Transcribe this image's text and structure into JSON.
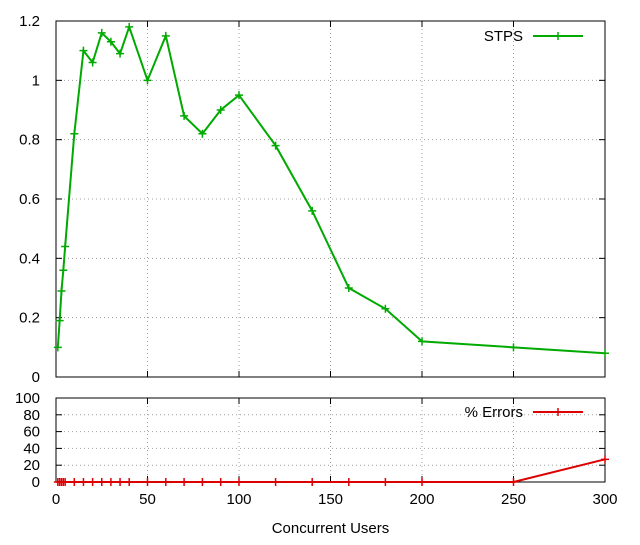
{
  "colors": {
    "stps": "#00aa00",
    "errors": "#dd0000",
    "grid": "#a0a0a0",
    "axis": "#000000"
  },
  "chart_data": [
    {
      "type": "line",
      "title": "",
      "xlabel": "",
      "ylabel": "",
      "xlim": [
        0,
        300
      ],
      "ylim": [
        0,
        1.2
      ],
      "xticks": [
        "0",
        "50",
        "100",
        "150",
        "200",
        "250",
        "300"
      ],
      "xtick_values": [
        0,
        50,
        100,
        150,
        200,
        250,
        300
      ],
      "yticks": [
        "0",
        "0.2",
        "0.4",
        "0.6",
        "0.8",
        "1",
        "1.2"
      ],
      "ytick_values": [
        0,
        0.2,
        0.4,
        0.6,
        0.8,
        1.0,
        1.2
      ],
      "grid": true,
      "legend_position": "top-right",
      "series": [
        {
          "name": "STPS",
          "color": "#00aa00",
          "x": [
            1,
            2,
            3,
            4,
            5,
            10,
            15,
            20,
            25,
            30,
            35,
            40,
            50,
            60,
            70,
            80,
            90,
            100,
            120,
            140,
            160,
            180,
            200,
            250,
            300
          ],
          "values": [
            0.1,
            0.19,
            0.29,
            0.36,
            0.44,
            0.82,
            1.1,
            1.06,
            1.16,
            1.13,
            1.09,
            1.18,
            1.0,
            1.15,
            0.88,
            0.82,
            0.9,
            0.95,
            0.78,
            0.56,
            0.3,
            0.23,
            0.12,
            0.1,
            0.08
          ]
        }
      ]
    },
    {
      "type": "line",
      "title": "",
      "xlabel": "Concurrent Users",
      "ylabel": "",
      "xlim": [
        0,
        300
      ],
      "ylim": [
        0,
        100
      ],
      "xticks": [
        "0",
        "50",
        "100",
        "150",
        "200",
        "250",
        "300"
      ],
      "xtick_values": [
        0,
        50,
        100,
        150,
        200,
        250,
        300
      ],
      "yticks": [
        "0",
        "20",
        "40",
        "60",
        "80",
        "100"
      ],
      "ytick_values": [
        0,
        20,
        40,
        60,
        80,
        100
      ],
      "grid": true,
      "legend_position": "top-right",
      "series": [
        {
          "name": "% Errors",
          "color": "#dd0000",
          "x": [
            1,
            2,
            3,
            4,
            5,
            10,
            15,
            20,
            25,
            30,
            35,
            40,
            50,
            60,
            70,
            80,
            90,
            100,
            120,
            140,
            160,
            180,
            200,
            250,
            300
          ],
          "values": [
            0,
            0,
            0,
            0,
            0,
            0,
            0,
            0,
            0,
            0,
            0,
            0,
            0,
            0,
            0,
            0,
            0,
            0,
            0,
            0,
            0,
            0,
            0,
            0,
            27
          ]
        }
      ]
    }
  ]
}
